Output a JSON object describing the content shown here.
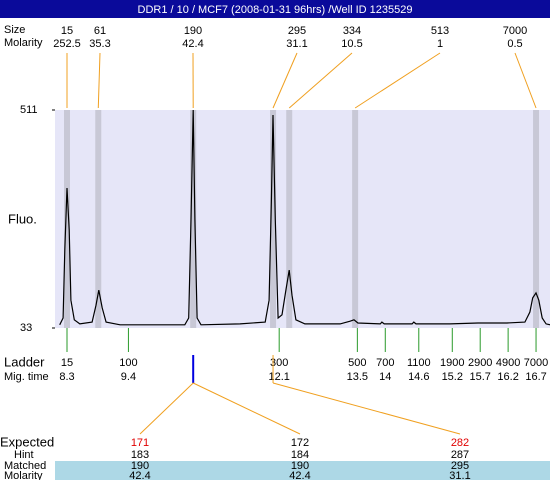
{
  "chart_data": {
    "type": "line",
    "title": "DDR1 / 10 / MCF7 (2008-01-31 96hrs) /Well ID 1235529",
    "y_label": "Fluo.",
    "ylim": [
      33,
      511
    ],
    "yticks": [
      33,
      511
    ],
    "xlim": [
      8.085,
      16.95
    ],
    "series": [
      {
        "color": "#000000",
        "x": [
          8.17,
          8.23,
          8.26,
          8.3,
          8.34,
          8.37,
          8.43,
          8.53,
          8.75,
          8.82,
          8.87,
          8.93,
          9.0,
          9.25,
          9.79,
          10.41,
          10.48,
          10.52,
          10.56,
          10.59,
          10.63,
          10.7,
          11.4,
          11.85,
          11.92,
          11.96,
          11.99,
          12.03,
          12.08,
          12.15,
          12.22,
          12.28,
          12.33,
          12.4,
          12.56,
          13.19,
          13.37,
          13.44,
          13.51,
          13.91,
          13.94,
          13.98,
          14.48,
          14.51,
          14.55,
          15.16,
          15.66,
          16.18,
          16.5,
          16.59,
          16.64,
          16.7,
          16.75,
          16.81,
          16.88,
          16.95
        ],
        "values": [
          40,
          55,
          204,
          340,
          248,
          94,
          51,
          42,
          46,
          83,
          116,
          77,
          46,
          40,
          40,
          40,
          55,
          270,
          511,
          270,
          55,
          40,
          42,
          46,
          94,
          314,
          500,
          270,
          55,
          62,
          116,
          160,
          105,
          51,
          42,
          42,
          48,
          51,
          44,
          42,
          46,
          42,
          42,
          46,
          42,
          42,
          44,
          44,
          46,
          68,
          99,
          110,
          94,
          55,
          42,
          40
        ]
      }
    ],
    "peaks": {
      "label": "Size",
      "molarity_label": "Molarity",
      "sizes": [
        15,
        61,
        190,
        295,
        334,
        513,
        7000
      ],
      "molarities": [
        252.5,
        35.3,
        42.4,
        31.1,
        10.5,
        1,
        0.5
      ],
      "x": [
        8.3,
        8.86,
        10.56,
        11.99,
        12.28,
        13.46,
        16.7
      ]
    },
    "ladder": {
      "label": "Ladder",
      "time_label": "Mig. time",
      "sizes": [
        15,
        100,
        300,
        500,
        700,
        1100,
        1900,
        2900,
        4900,
        7000
      ],
      "times": [
        8.3,
        9.4,
        12.1,
        13.5,
        14,
        14.6,
        15.2,
        15.7,
        16.2,
        16.7
      ]
    },
    "expected": {
      "label": "Expected",
      "hint_label": "Hint",
      "matched_label": "Matched",
      "molarity_label": "Molarity",
      "values": [
        171,
        172,
        282
      ],
      "colors": [
        "#e00000",
        "#000000",
        "#e00000"
      ],
      "hints": [
        183,
        184,
        287
      ],
      "matched": [
        190,
        190,
        295
      ],
      "molarities": [
        42.4,
        42.4,
        31.1
      ]
    }
  }
}
